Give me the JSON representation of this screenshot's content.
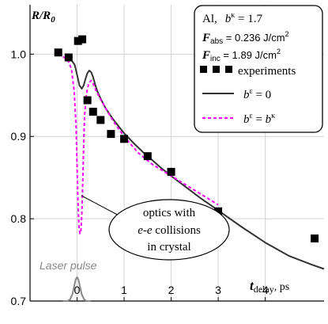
{
  "chart_data": {
    "type": "line",
    "xlabel": "t_delay, ps",
    "ylabel": "R/R_0",
    "xlim": [
      -1.0,
      5.25
    ],
    "ylim": [
      0.7,
      1.06
    ],
    "grid": true,
    "legend_position": "top-right",
    "x_ticks": [
      0,
      1,
      2,
      3,
      4
    ],
    "y_ticks": [
      0.7,
      0.8,
      0.9,
      1.0
    ],
    "x_tick_labels": [
      "0",
      "1",
      "2",
      "3",
      "4"
    ],
    "y_tick_labels": [
      "0.7",
      "0.8",
      "0.9",
      "1.0"
    ],
    "series": [
      {
        "name": "experiments",
        "kind": "scatter",
        "marker": "square",
        "color": "#000000",
        "x": [
          -0.4,
          -0.18,
          0.02,
          0.11,
          0.22,
          0.34,
          0.5,
          0.72,
          1.0,
          1.5,
          2.0,
          3.0,
          5.05
        ],
        "y": [
          1.002,
          0.996,
          1.016,
          1.018,
          0.944,
          0.93,
          0.92,
          0.903,
          0.897,
          0.876,
          0.857,
          0.809,
          0.776
        ]
      },
      {
        "name": "b^ε = 0",
        "kind": "line",
        "color": "#333333",
        "x": [
          -0.25,
          -0.15,
          -0.05,
          0.0,
          0.05,
          0.1,
          0.14,
          0.18,
          0.22,
          0.26,
          0.3,
          0.34,
          0.38,
          0.43,
          0.5,
          0.6,
          0.75,
          0.9,
          1.0,
          1.2,
          1.4,
          1.6,
          1.8,
          2.0,
          2.3,
          2.6,
          3.0,
          3.5,
          4.0,
          4.5,
          5.0,
          5.25
        ],
        "y": [
          0.997,
          0.995,
          0.987,
          0.975,
          0.962,
          0.958,
          0.962,
          0.97,
          0.977,
          0.98,
          0.978,
          0.972,
          0.964,
          0.955,
          0.946,
          0.935,
          0.922,
          0.911,
          0.904,
          0.892,
          0.881,
          0.871,
          0.861,
          0.852,
          0.839,
          0.826,
          0.81,
          0.79,
          0.771,
          0.755,
          0.744,
          0.739
        ]
      },
      {
        "name": "b^ε = b^κ",
        "kind": "line",
        "dashed": true,
        "color": "#ff00ff",
        "x": [
          -0.3,
          -0.2,
          -0.12,
          -0.06,
          -0.02,
          0.0,
          0.02,
          0.04,
          0.06,
          0.08,
          0.1,
          0.12,
          0.14,
          0.16,
          0.2,
          0.25,
          0.3,
          0.35,
          0.4,
          0.5,
          0.65,
          0.8,
          1.0,
          1.3,
          1.6,
          2.0,
          2.4,
          2.8,
          3.0
        ],
        "y": [
          0.997,
          0.993,
          0.982,
          0.955,
          0.91,
          0.865,
          0.82,
          0.79,
          0.782,
          0.784,
          0.805,
          0.845,
          0.89,
          0.925,
          0.952,
          0.965,
          0.968,
          0.963,
          0.956,
          0.945,
          0.93,
          0.916,
          0.9,
          0.88,
          0.866,
          0.852,
          0.838,
          0.824,
          0.817
        ]
      },
      {
        "name": "Laser pulse",
        "kind": "line",
        "color": "#888888",
        "x": [
          -0.3,
          -0.2,
          -0.15,
          -0.1,
          -0.06,
          -0.03,
          0.0,
          0.03,
          0.06,
          0.1,
          0.15,
          0.2,
          0.3
        ],
        "y": [
          0.7,
          0.7,
          0.702,
          0.708,
          0.718,
          0.726,
          0.729,
          0.726,
          0.718,
          0.708,
          0.702,
          0.7,
          0.7
        ]
      }
    ],
    "legend": {
      "title": "Al,   b^κ = 1.7",
      "params": [
        {
          "symbol": "F",
          "sub": "abs",
          "value": " = 0.236 J/cm",
          "sup": "2"
        },
        {
          "symbol": "F",
          "sub": "inc",
          "value": " = 1.89 J/cm",
          "sup": "2"
        }
      ],
      "entries": [
        {
          "label": "experiments"
        },
        {
          "label": "b^ε = 0"
        },
        {
          "label": "b^ε = b^κ"
        }
      ]
    },
    "annotations": {
      "callout": [
        "optics with",
        "e-e collisions",
        "in crystal"
      ],
      "laser": "Laser pulse"
    }
  }
}
